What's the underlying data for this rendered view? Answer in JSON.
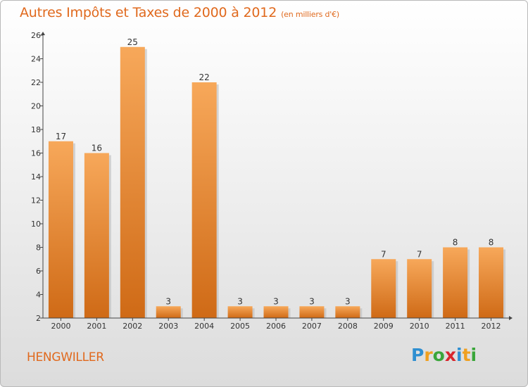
{
  "title": "Autres Impôts et Taxes de 2000 à 2012",
  "subtitle": "(en milliers d'€)",
  "town": "HENGWILLER",
  "logo": {
    "letters": [
      "P",
      "r",
      "o",
      "x",
      "i",
      "t",
      "i"
    ],
    "colors": [
      "#2f8fd1",
      "#f0a020",
      "#3aa63a",
      "#d8262c",
      "#2f8fd1",
      "#f0a020",
      "#3aa63a"
    ]
  },
  "colors": {
    "bar_light": "#f7a85a",
    "bar_dark": "#cf6a16",
    "title": "#e0691d"
  },
  "chart_data": {
    "type": "bar",
    "categories": [
      "2000",
      "2001",
      "2002",
      "2003",
      "2004",
      "2005",
      "2006",
      "2007",
      "2008",
      "2009",
      "2010",
      "2011",
      "2012"
    ],
    "values": [
      17,
      16,
      25,
      3,
      22,
      3,
      3,
      3,
      3,
      7,
      7,
      8,
      8
    ],
    "data_labels": [
      "17",
      "16",
      "25",
      "3",
      "22",
      "3",
      "3",
      "3",
      "3",
      "7",
      "7",
      "8",
      "8"
    ],
    "yticks": [
      "2",
      "4",
      "6",
      "8",
      "10",
      "12",
      "14",
      "16",
      "18",
      "20",
      "22",
      "24",
      "26"
    ],
    "ylim": [
      2,
      26
    ],
    "grid": false,
    "legend": "none"
  }
}
